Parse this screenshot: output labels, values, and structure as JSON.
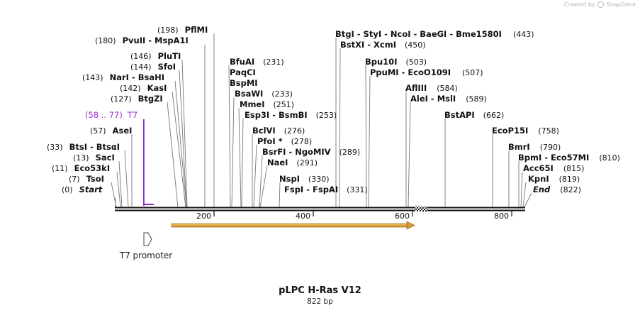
{
  "watermark": {
    "text": "Created by",
    "brand": "SnapGene"
  },
  "title": "pLPC H-Ras V12",
  "length_label": "822 bp",
  "sequence_length": 822,
  "ticks": [
    "200",
    "400",
    "600",
    "800"
  ],
  "sites": [
    {
      "pos": "(0)",
      "name": "Start",
      "italic": true
    },
    {
      "pos": "(7)",
      "name": "TsoI"
    },
    {
      "pos": "(11)",
      "name": "Eco53kI"
    },
    {
      "pos": "(13)",
      "name": "SacI"
    },
    {
      "pos": "(33)",
      "name": "BtsI - BtsαI"
    },
    {
      "pos": "(57)",
      "name": "AseI"
    },
    {
      "pos": "(127)",
      "name": "BtgZI"
    },
    {
      "pos": "(142)",
      "name": "KasI"
    },
    {
      "pos": "(143)",
      "name": "NarI - BsaHI"
    },
    {
      "pos": "(144)",
      "name": "SfoI"
    },
    {
      "pos": "(146)",
      "name": "PluTI"
    },
    {
      "pos": "(180)",
      "name": "PvuII - MspA1I"
    },
    {
      "pos": "(198)",
      "name": "PflMI"
    },
    {
      "pos": "(231)",
      "name": "BfuAI"
    },
    {
      "pos": "",
      "name": "PaqCI"
    },
    {
      "pos": "",
      "name": "BspMI"
    },
    {
      "pos": "(233)",
      "name": "BsaWI"
    },
    {
      "pos": "(251)",
      "name": "MmeI"
    },
    {
      "pos": "(253)",
      "name": "Esp3I - BsmBI"
    },
    {
      "pos": "(276)",
      "name": "BclVI"
    },
    {
      "pos": "(278)",
      "name": "PfoI *"
    },
    {
      "pos": "(289)",
      "name": "BsrFI - NgoMIV"
    },
    {
      "pos": "(291)",
      "name": "NaeI"
    },
    {
      "pos": "(330)",
      "name": "NspI"
    },
    {
      "pos": "(331)",
      "name": "FspI - FspAI"
    },
    {
      "pos": "(443)",
      "name": "BtgI - StyI - NcoI - BaeGI - Bme1580I"
    },
    {
      "pos": "(450)",
      "name": "BstXI - XcmI"
    },
    {
      "pos": "(503)",
      "name": "Bpu10I"
    },
    {
      "pos": "(507)",
      "name": "PpuMI - EcoO109I"
    },
    {
      "pos": "(584)",
      "name": "AflIII"
    },
    {
      "pos": "(589)",
      "name": "AleI - MslI"
    },
    {
      "pos": "(662)",
      "name": "BstAPI"
    },
    {
      "pos": "(758)",
      "name": "EcoP15I"
    },
    {
      "pos": "(790)",
      "name": "BmrI"
    },
    {
      "pos": "(810)",
      "name": "BpmI - Eco57MI"
    },
    {
      "pos": "(815)",
      "name": "Acc65I"
    },
    {
      "pos": "(819)",
      "name": "KpnI"
    },
    {
      "pos": "(822)",
      "name": "End",
      "italic": true
    }
  ],
  "primer": {
    "pos": "(58 .. 77)",
    "name": "T7"
  },
  "feature": {
    "name": "T7 promoter"
  }
}
